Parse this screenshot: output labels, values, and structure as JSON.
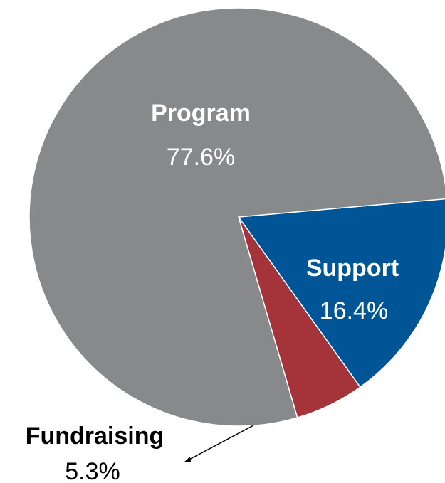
{
  "chart_data": {
    "type": "pie",
    "title": "",
    "slices": [
      {
        "label": "Support",
        "value": 16.4,
        "value_label": "16.4%",
        "color": "#005596",
        "label_color": "#ffffff"
      },
      {
        "label": "Fundraising",
        "value": 5.3,
        "value_label": "5.3%",
        "color": "#A4343A",
        "label_color": "#000000"
      },
      {
        "label": "Program",
        "value": 77.6,
        "value_label": "77.6%",
        "color": "#87898B",
        "label_color": "#ffffff"
      }
    ],
    "start_angle_deg": -5,
    "direction": "clockwise",
    "legend": "none"
  }
}
